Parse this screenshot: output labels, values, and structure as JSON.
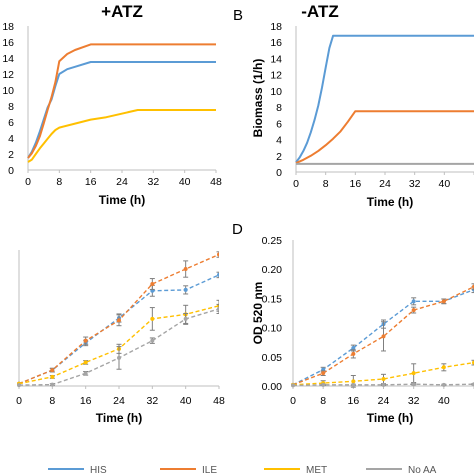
{
  "colors": {
    "HIS": "#5b9bd5",
    "ILE": "#ed7d31",
    "MET": "#ffc000",
    "No AA": "#a5a5a5"
  },
  "legend": [
    {
      "name": "HIS",
      "color": "#5b9bd5"
    },
    {
      "name": "ILE",
      "color": "#ed7d31"
    },
    {
      "name": "MET",
      "color": "#ffc000"
    },
    {
      "name": "No AA",
      "color": "#a5a5a5"
    }
  ],
  "chart_data": [
    {
      "id": "A",
      "letter": "",
      "type": "line",
      "title": "+ATZ",
      "xlabel": "Time (h)",
      "ylabel": "",
      "xlim": [
        0,
        48
      ],
      "ylim": [
        0,
        18
      ],
      "xticks": [
        "0",
        "8",
        "16",
        "24",
        "32",
        "40",
        "48"
      ],
      "yticks": [
        "0",
        "2",
        "4",
        "6",
        "8",
        "10",
        "12",
        "14",
        "16",
        "18"
      ],
      "grid": false,
      "series": [
        {
          "name": "HIS",
          "x": [
            0,
            1,
            2,
            3,
            4,
            5,
            6,
            7,
            8,
            10,
            12,
            16,
            20,
            30,
            48
          ],
          "y": [
            1.5,
            2.3,
            3.4,
            4.8,
            6.3,
            7.8,
            8.8,
            10.5,
            12.0,
            12.6,
            12.9,
            13.5,
            13.5,
            13.5,
            13.5
          ]
        },
        {
          "name": "ILE",
          "x": [
            0,
            1,
            2,
            3,
            4,
            5,
            6,
            7,
            8,
            10,
            12,
            16,
            20,
            30,
            48
          ],
          "y": [
            1.5,
            2.1,
            3.0,
            4.2,
            5.8,
            7.5,
            9.1,
            11.0,
            13.6,
            14.5,
            15.0,
            15.7,
            15.7,
            15.7,
            15.7
          ]
        },
        {
          "name": "MET",
          "x": [
            0,
            1,
            2,
            3,
            4,
            5,
            6,
            7,
            8,
            12,
            16,
            20,
            28,
            48
          ],
          "y": [
            1.0,
            1.3,
            2.0,
            2.7,
            3.3,
            3.9,
            4.5,
            5.0,
            5.3,
            5.8,
            6.3,
            6.6,
            7.5,
            7.5
          ]
        }
      ]
    },
    {
      "id": "B",
      "letter": "B",
      "type": "line",
      "title": "-ATZ",
      "xlabel": "Time (h)",
      "ylabel": "Biomass (1/h)",
      "xlim": [
        0,
        48
      ],
      "ylim": [
        0,
        18
      ],
      "xticks": [
        "0",
        "8",
        "16",
        "24",
        "32",
        "40",
        "48"
      ],
      "yticks": [
        "0",
        "2",
        "4",
        "6",
        "8",
        "10",
        "12",
        "14",
        "16",
        "18"
      ],
      "grid": false,
      "series": [
        {
          "name": "HIS",
          "x": [
            0,
            1,
            2,
            3,
            4,
            5,
            6,
            7,
            8,
            9,
            10,
            12,
            20,
            48
          ],
          "y": [
            1.2,
            1.8,
            2.6,
            3.6,
            4.9,
            6.4,
            8.2,
            10.4,
            12.9,
            15.3,
            16.8,
            16.8,
            16.8,
            16.8
          ]
        },
        {
          "name": "ILE",
          "x": [
            0,
            2,
            4,
            6,
            8,
            10,
            12,
            14,
            16,
            20,
            48
          ],
          "y": [
            1.1,
            1.5,
            2.0,
            2.6,
            3.3,
            4.1,
            5.0,
            6.2,
            7.5,
            7.5,
            7.5
          ]
        },
        {
          "name": "No AA",
          "x": [
            0,
            48
          ],
          "y": [
            1.0,
            1.0
          ]
        }
      ]
    },
    {
      "id": "C",
      "letter": "",
      "type": "line",
      "title": "",
      "xlabel": "Time (h)",
      "ylabel": "",
      "xlim": [
        0,
        48
      ],
      "ylim": [
        0,
        0.3
      ],
      "xticks": [
        "0",
        "8",
        "16",
        "24",
        "32",
        "40",
        "48"
      ],
      "yticks": [
        "",
        "",
        "",
        "",
        "",
        "",
        ""
      ],
      "grid": false,
      "dashed": true,
      "series": [
        {
          "name": "HIS",
          "x": [
            0,
            8,
            16,
            24,
            32,
            40,
            48
          ],
          "y": [
            0.005,
            0.035,
            0.095,
            0.15,
            0.21,
            0.212,
            0.245
          ],
          "err": [
            0,
            0.004,
            0.006,
            0.009,
            0.012,
            0.009,
            0.006
          ]
        },
        {
          "name": "ILE",
          "x": [
            0,
            8,
            16,
            24,
            32,
            40,
            48
          ],
          "y": [
            0.005,
            0.035,
            0.1,
            0.145,
            0.225,
            0.258,
            0.29
          ],
          "err": [
            0,
            0.004,
            0.008,
            0.012,
            0.012,
            0.018,
            0.006
          ]
        },
        {
          "name": "MET",
          "x": [
            0,
            8,
            16,
            24,
            32,
            40,
            48
          ],
          "y": [
            0.005,
            0.02,
            0.052,
            0.082,
            0.148,
            0.158,
            0.177
          ],
          "err": [
            0,
            0.003,
            0.004,
            0.01,
            0.025,
            0.02,
            0.012
          ]
        },
        {
          "name": "No AA",
          "x": [
            0,
            8,
            16,
            24,
            32,
            40,
            48
          ],
          "y": [
            0.002,
            0.003,
            0.028,
            0.062,
            0.1,
            0.148,
            0.17
          ],
          "err": [
            0,
            0.002,
            0.004,
            0.025,
            0.006,
            0.012,
            0.01
          ]
        }
      ]
    },
    {
      "id": "D",
      "letter": "D",
      "type": "line",
      "title": "",
      "xlabel": "Time (h)",
      "ylabel": "OD 520 nm",
      "xlim": [
        0,
        48
      ],
      "ylim": [
        0,
        0.25
      ],
      "xticks": [
        "0",
        "8",
        "16",
        "24",
        "32",
        "40",
        "48"
      ],
      "yticks": [
        "0.00",
        "0.05",
        "0.10",
        "0.15",
        "0.20",
        "0.25"
      ],
      "grid": false,
      "dashed": true,
      "series": [
        {
          "name": "HIS",
          "x": [
            0,
            8,
            16,
            24,
            32,
            40,
            48
          ],
          "y": [
            0.002,
            0.028,
            0.065,
            0.106,
            0.145,
            0.145,
            0.165
          ],
          "err": [
            0,
            0.004,
            0.005,
            0.007,
            0.006,
            0.004,
            0.005
          ]
        },
        {
          "name": "ILE",
          "x": [
            0,
            8,
            16,
            24,
            32,
            40,
            48
          ],
          "y": [
            0.002,
            0.022,
            0.055,
            0.085,
            0.13,
            0.145,
            0.17
          ],
          "err": [
            0,
            0.004,
            0.007,
            0.025,
            0.005,
            0.004,
            0.005
          ]
        },
        {
          "name": "MET",
          "x": [
            0,
            8,
            16,
            24,
            32,
            40,
            48
          ],
          "y": [
            0.002,
            0.005,
            0.008,
            0.012,
            0.022,
            0.032,
            0.04
          ],
          "err": [
            0,
            0.004,
            0.01,
            0.008,
            0.016,
            0.006,
            0.004
          ]
        },
        {
          "name": "No AA",
          "x": [
            0,
            8,
            16,
            24,
            32,
            40,
            48
          ],
          "y": [
            0.001,
            0.002,
            0.002,
            0.002,
            0.003,
            0.002,
            0.003
          ],
          "err": [
            0,
            0.001,
            0.001,
            0.001,
            0.001,
            0.001,
            0.001
          ]
        }
      ]
    }
  ]
}
